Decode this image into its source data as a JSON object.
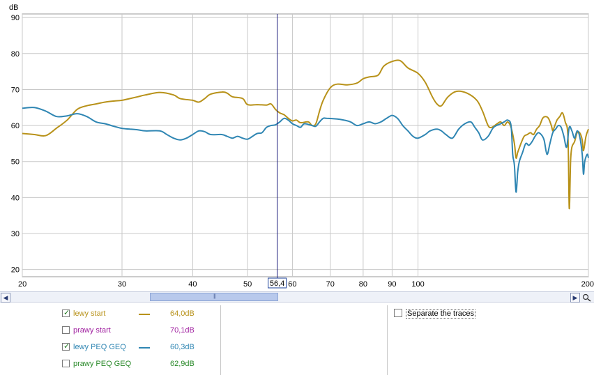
{
  "chart_data": {
    "type": "line",
    "ylabel": "dB",
    "xscale": "log",
    "xlim": [
      20,
      200
    ],
    "ylim": [
      18,
      91
    ],
    "x_ticks": [
      20,
      30,
      40,
      50,
      60,
      70,
      80,
      90,
      100,
      200
    ],
    "x_tick_labels": [
      "20",
      "30",
      "40",
      "50",
      "60",
      "70",
      "80",
      "90",
      "100",
      "200"
    ],
    "y_ticks": [
      20,
      30,
      40,
      50,
      60,
      70,
      80,
      90
    ],
    "y_tick_labels": [
      "20",
      "30",
      "40",
      "50",
      "60",
      "70",
      "80",
      "90"
    ],
    "grid": true,
    "cursor": {
      "x": 56.4,
      "label": "56,4"
    },
    "series": [
      {
        "name": "lewy start",
        "color": "#b8921a",
        "points": [
          [
            20,
            57.8
          ],
          [
            21,
            57.5
          ],
          [
            22,
            57.2
          ],
          [
            23,
            59.3
          ],
          [
            24,
            61.5
          ],
          [
            25,
            64.5
          ],
          [
            26,
            65.5
          ],
          [
            27,
            66.0
          ],
          [
            28,
            66.5
          ],
          [
            29,
            66.8
          ],
          [
            30,
            67.0
          ],
          [
            31,
            67.5
          ],
          [
            32,
            68.0
          ],
          [
            33,
            68.5
          ],
          [
            35,
            69.2
          ],
          [
            37,
            68.5
          ],
          [
            38,
            67.5
          ],
          [
            40,
            67.0
          ],
          [
            41,
            66.5
          ],
          [
            42,
            67.5
          ],
          [
            43,
            68.7
          ],
          [
            45,
            69.3
          ],
          [
            46,
            69.0
          ],
          [
            47,
            68.0
          ],
          [
            49,
            67.5
          ],
          [
            50,
            65.8
          ],
          [
            52,
            65.8
          ],
          [
            54,
            65.7
          ],
          [
            55,
            66.0
          ],
          [
            56,
            64.5
          ],
          [
            57,
            63.5
          ],
          [
            58,
            63.0
          ],
          [
            59,
            62.0
          ],
          [
            60,
            61.3
          ],
          [
            61,
            61.5
          ],
          [
            62,
            60.8
          ],
          [
            64,
            61.0
          ],
          [
            65,
            60.0
          ],
          [
            66,
            60.5
          ],
          [
            67,
            64.0
          ],
          [
            68,
            67.0
          ],
          [
            70,
            70.5
          ],
          [
            72,
            71.5
          ],
          [
            75,
            71.3
          ],
          [
            78,
            71.8
          ],
          [
            80,
            73.0
          ],
          [
            82,
            73.5
          ],
          [
            85,
            74.0
          ],
          [
            87,
            76.5
          ],
          [
            90,
            77.8
          ],
          [
            93,
            78.0
          ],
          [
            96,
            76.0
          ],
          [
            100,
            74.5
          ],
          [
            103,
            72.0
          ],
          [
            106,
            68.0
          ],
          [
            108,
            66.0
          ],
          [
            110,
            65.5
          ],
          [
            113,
            68.0
          ],
          [
            117,
            69.5
          ],
          [
            122,
            69.0
          ],
          [
            127,
            67.0
          ],
          [
            130,
            64.0
          ],
          [
            133,
            60.0
          ],
          [
            135,
            59.5
          ],
          [
            138,
            60.5
          ],
          [
            140,
            61.0
          ],
          [
            142,
            60.0
          ],
          [
            144,
            61.0
          ],
          [
            146,
            59.5
          ],
          [
            148,
            55.0
          ],
          [
            149,
            51.0
          ],
          [
            150,
            52.5
          ],
          [
            152,
            55.0
          ],
          [
            154,
            57.0
          ],
          [
            156,
            57.5
          ],
          [
            158,
            58.0
          ],
          [
            160,
            57.5
          ],
          [
            162,
            59.0
          ],
          [
            164,
            60.0
          ],
          [
            166,
            62.0
          ],
          [
            168,
            62.5
          ],
          [
            170,
            62.0
          ],
          [
            172,
            60.0
          ],
          [
            173,
            58.5
          ],
          [
            174,
            59.5
          ],
          [
            176,
            61.5
          ],
          [
            178,
            62.5
          ],
          [
            180,
            63.5
          ],
          [
            182,
            61.0
          ],
          [
            184,
            57.0
          ],
          [
            185,
            37.0
          ],
          [
            186,
            50.0
          ],
          [
            187,
            54.0
          ],
          [
            189,
            55.5
          ],
          [
            191,
            58.0
          ],
          [
            193,
            58.0
          ],
          [
            195,
            56.0
          ],
          [
            196,
            53.0
          ],
          [
            198,
            57.0
          ],
          [
            200,
            59.0
          ]
        ]
      },
      {
        "name": "lewy  PEQ GEQ",
        "color": "#2f86b3",
        "points": [
          [
            20,
            64.8
          ],
          [
            21,
            65.0
          ],
          [
            22,
            64.0
          ],
          [
            23,
            62.5
          ],
          [
            24,
            62.7
          ],
          [
            25,
            63.3
          ],
          [
            26,
            62.5
          ],
          [
            27,
            61.0
          ],
          [
            28,
            60.5
          ],
          [
            29,
            59.8
          ],
          [
            30,
            59.2
          ],
          [
            31,
            59.0
          ],
          [
            32,
            58.8
          ],
          [
            33,
            58.5
          ],
          [
            35,
            58.5
          ],
          [
            36,
            57.5
          ],
          [
            37,
            56.5
          ],
          [
            38,
            56.0
          ],
          [
            39,
            56.5
          ],
          [
            40,
            57.5
          ],
          [
            41,
            58.5
          ],
          [
            42,
            58.3
          ],
          [
            43,
            57.5
          ],
          [
            45,
            57.5
          ],
          [
            46,
            57.0
          ],
          [
            47,
            56.5
          ],
          [
            48,
            57.0
          ],
          [
            49,
            56.5
          ],
          [
            50,
            56.2
          ],
          [
            51,
            57.0
          ],
          [
            52,
            57.8
          ],
          [
            53,
            58.0
          ],
          [
            54,
            59.5
          ],
          [
            55,
            60.0
          ],
          [
            56,
            60.2
          ],
          [
            57,
            61.0
          ],
          [
            58,
            62.0
          ],
          [
            59,
            61.5
          ],
          [
            60,
            60.5
          ],
          [
            61,
            60.0
          ],
          [
            62,
            59.5
          ],
          [
            63,
            60.5
          ],
          [
            65,
            60.0
          ],
          [
            66,
            59.8
          ],
          [
            67,
            61.0
          ],
          [
            68,
            62.0
          ],
          [
            69,
            62.0
          ],
          [
            72,
            61.8
          ],
          [
            74,
            61.5
          ],
          [
            76,
            61.0
          ],
          [
            78,
            60.0
          ],
          [
            80,
            60.5
          ],
          [
            82,
            61.0
          ],
          [
            84,
            60.5
          ],
          [
            86,
            61.0
          ],
          [
            88,
            62.0
          ],
          [
            90,
            62.8
          ],
          [
            92,
            62.0
          ],
          [
            94,
            60.0
          ],
          [
            96,
            58.5
          ],
          [
            98,
            57.0
          ],
          [
            100,
            56.5
          ],
          [
            103,
            57.5
          ],
          [
            105,
            58.5
          ],
          [
            108,
            59.0
          ],
          [
            110,
            58.5
          ],
          [
            112,
            57.5
          ],
          [
            115,
            56.5
          ],
          [
            118,
            59.0
          ],
          [
            121,
            60.5
          ],
          [
            124,
            61.0
          ],
          [
            126,
            59.5
          ],
          [
            128,
            58.0
          ],
          [
            130,
            56.0
          ],
          [
            133,
            57.0
          ],
          [
            136,
            59.5
          ],
          [
            140,
            60.5
          ],
          [
            142,
            61.0
          ],
          [
            144,
            61.5
          ],
          [
            146,
            60.0
          ],
          [
            147,
            52.0
          ],
          [
            148,
            49.0
          ],
          [
            149,
            41.5
          ],
          [
            150,
            47.0
          ],
          [
            151,
            50.0
          ],
          [
            153,
            52.5
          ],
          [
            155,
            55.0
          ],
          [
            157,
            54.5
          ],
          [
            159,
            55.5
          ],
          [
            161,
            57.0
          ],
          [
            163,
            58.0
          ],
          [
            165,
            57.5
          ],
          [
            167,
            56.0
          ],
          [
            169,
            52.0
          ],
          [
            171,
            55.0
          ],
          [
            173,
            58.0
          ],
          [
            175,
            59.0
          ],
          [
            177,
            60.0
          ],
          [
            179,
            59.5
          ],
          [
            181,
            57.0
          ],
          [
            183,
            54.0
          ],
          [
            185,
            59.5
          ],
          [
            187,
            58.5
          ],
          [
            189,
            56.5
          ],
          [
            191,
            58.5
          ],
          [
            193,
            57.0
          ],
          [
            195,
            52.0
          ],
          [
            196,
            46.5
          ],
          [
            197,
            50.0
          ],
          [
            199,
            52.0
          ],
          [
            200,
            51.0
          ]
        ]
      }
    ]
  },
  "legend": {
    "items": [
      {
        "label": "lewy start",
        "value": "64,0dB",
        "checked": true,
        "color": "#b8921a",
        "label_color": "#b8921a",
        "value_color": "#b8921a"
      },
      {
        "label": "prawy start",
        "value": "70,1dB",
        "checked": false,
        "color": "#a020a0",
        "label_color": "#a020a0",
        "value_color": "#a020a0"
      },
      {
        "label": "lewy  PEQ GEQ",
        "value": "60,3dB",
        "checked": true,
        "color": "#2f86b3",
        "label_color": "#2f86b3",
        "value_color": "#2f86b3"
      },
      {
        "label": "prawy PEQ GEQ",
        "value": "62,9dB",
        "checked": false,
        "color": "#2a8a2a",
        "label_color": "#2a8a2a",
        "value_color": "#2a8a2a"
      }
    ],
    "separate_traces_label": "Separate the traces",
    "separate_traces_checked": false
  },
  "scrollbar": {
    "left_arrow_icon": "arrow-left-icon",
    "right_arrow_icon": "arrow-right-icon",
    "thumb_start_fraction": 0.25,
    "thumb_end_fraction": 0.48
  },
  "colors": {
    "grid": "#c8c8c8",
    "plot_border": "#9a9a9a",
    "cursor": "#1a1a7a"
  }
}
